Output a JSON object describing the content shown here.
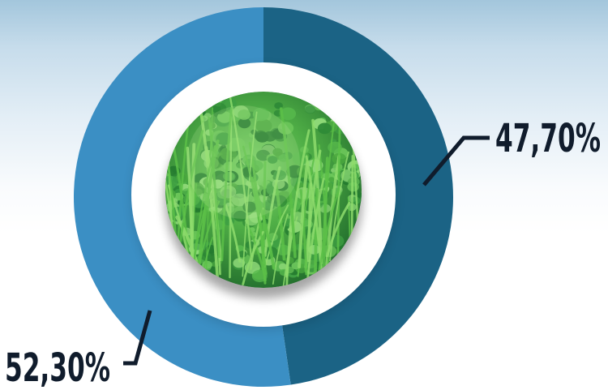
{
  "chart_data": {
    "type": "pie",
    "style": "donut",
    "slices": [
      {
        "value": 47.7,
        "label": "47,70%",
        "color": "#1b6385"
      },
      {
        "value": 52.3,
        "label": "52,30%",
        "color": "#3b8fc4"
      }
    ],
    "center_image": "grass-and-clover-photo",
    "legend": "none"
  }
}
